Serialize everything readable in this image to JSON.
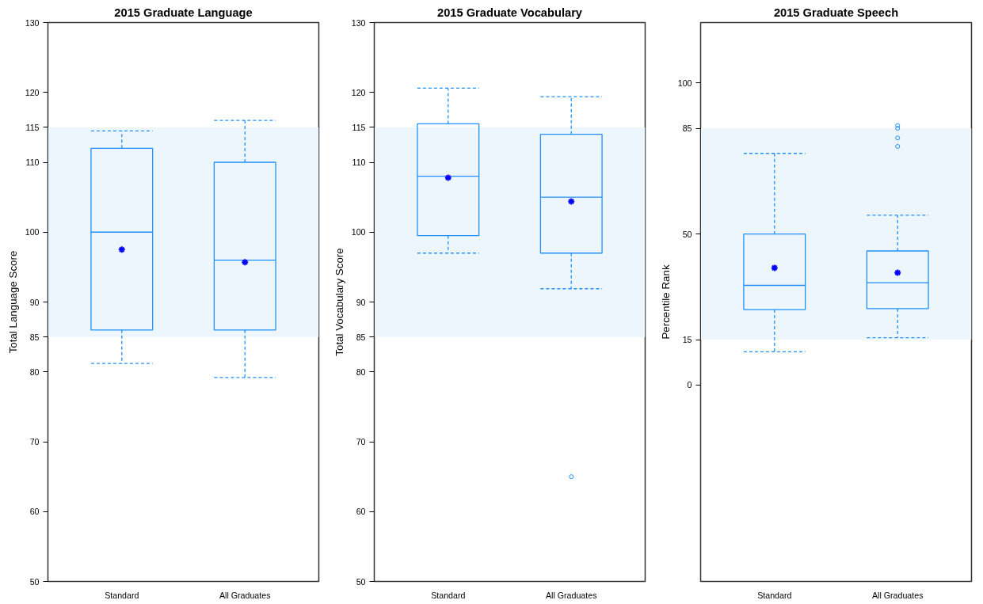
{
  "chart_data": [
    {
      "type": "box",
      "title": "2015 Graduate Language",
      "ylabel": "Total Language Score",
      "categories": [
        "Standard",
        "All Graduates"
      ],
      "ylim": [
        50,
        130
      ],
      "yticks": [
        50,
        60,
        70,
        80,
        85,
        90,
        100,
        110,
        115,
        120,
        130
      ],
      "grid": false,
      "bands": [
        {
          "axis": "y",
          "from": 85,
          "to": 115,
          "color": "#eef6fd"
        }
      ],
      "series": [
        {
          "color": "#1e90ff",
          "boxes": [
            {
              "low": 81.2,
              "q1": 86,
              "median": 100,
              "q3": 112,
              "high": 114.5,
              "mean": 97.5
            },
            {
              "low": 79.2,
              "q1": 86,
              "median": 96,
              "q3": 110,
              "high": 116,
              "mean": 95.7
            }
          ]
        }
      ]
    },
    {
      "type": "box",
      "title": "2015 Graduate Vocabulary",
      "ylabel": "Total Vocabulary Score",
      "categories": [
        "Standard",
        "All Graduates"
      ],
      "ylim": [
        50,
        130
      ],
      "yticks": [
        50,
        60,
        70,
        80,
        85,
        90,
        100,
        110,
        115,
        120,
        130
      ],
      "grid": false,
      "bands": [
        {
          "axis": "y",
          "from": 85,
          "to": 115,
          "color": "#eef6fd"
        }
      ],
      "series": [
        {
          "color": "#1e90ff",
          "boxes": [
            {
              "low": 97,
              "q1": 99.5,
              "median": 108,
              "q3": 115.5,
              "high": 120.6,
              "mean": 107.8
            },
            {
              "low": 91.9,
              "q1": 97,
              "median": 105,
              "q3": 114,
              "high": 119.4,
              "mean": 104.4,
              "outliers": [
                65
              ]
            }
          ]
        }
      ]
    },
    {
      "type": "box",
      "title": "2015 Graduate Speech",
      "ylabel": "Percentile Rank",
      "categories": [
        "Standard",
        "All Graduates"
      ],
      "ylim": [
        -65,
        120
      ],
      "yticks": [
        0,
        15,
        50,
        85,
        100
      ],
      "grid": false,
      "bands": [
        {
          "axis": "y",
          "from": 15,
          "to": 85,
          "color": "#eef6fd"
        }
      ],
      "series": [
        {
          "color": "#1e90ff",
          "boxes": [
            {
              "low": 11,
              "q1": 25,
              "median": 33,
              "q3": 50,
              "high": 76.7,
              "mean": 38.8
            },
            {
              "low": 15.7,
              "q1": 25.3,
              "median": 33.9,
              "q3": 44.4,
              "high": 56.2,
              "mean": 37.2,
              "outliers": [
                85.9,
                85,
                81.8,
                79
              ]
            }
          ]
        }
      ]
    }
  ]
}
